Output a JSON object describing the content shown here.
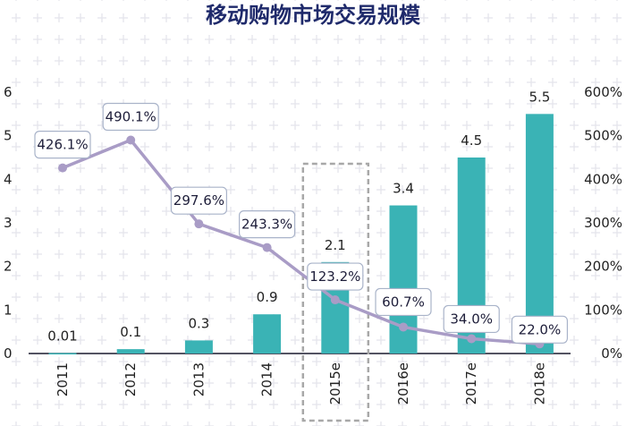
{
  "chart_data": {
    "type": "bar+line",
    "title": "移动购物市场交易规模",
    "categories": [
      "2011",
      "2012",
      "2013",
      "2014",
      "2015e",
      "2016e",
      "2017e",
      "2018e"
    ],
    "series": [
      {
        "type": "bar",
        "axis": "left",
        "values": [
          0.01,
          0.1,
          0.3,
          0.9,
          2.1,
          3.4,
          4.5,
          5.5
        ],
        "labels": [
          "0.01",
          "0.1",
          "0.3",
          "0.9",
          "2.1",
          "3.4",
          "4.5",
          "5.5"
        ]
      },
      {
        "type": "line",
        "axis": "right",
        "values": [
          426.1,
          490.1,
          297.6,
          243.3,
          123.2,
          60.7,
          34.0,
          22.0
        ],
        "labels": [
          "426.1%",
          "490.1%",
          "297.6%",
          "243.3%",
          "123.2%",
          "60.7%",
          "34.0%",
          "22.0%"
        ]
      }
    ],
    "left_axis": {
      "ylim": [
        0,
        6
      ],
      "ticks": [
        "0",
        "1",
        "2",
        "3",
        "4",
        "5",
        "6"
      ]
    },
    "right_axis": {
      "ylim": [
        0,
        600
      ],
      "ticks": [
        "0%",
        "100%",
        "200%",
        "300%",
        "400%",
        "500%",
        "600%"
      ]
    },
    "highlighted_category": "2015e",
    "grid": false,
    "colors": {
      "bar": "#3ab3b5",
      "line": "#a99cc6",
      "title": "#1f2a6b",
      "background_pattern": "#e4e4ec",
      "highlight_box": "#a8a8a8"
    }
  }
}
